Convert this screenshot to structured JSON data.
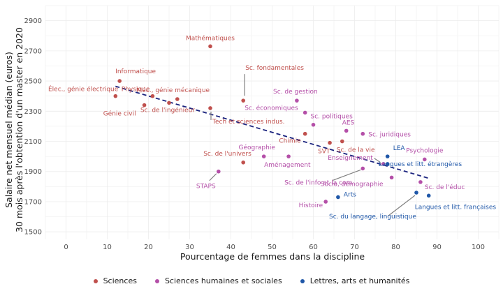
{
  "chart_data": {
    "type": "scatter",
    "xlabel": "Pourcentage de femmes dans la discipline",
    "ylabel_lines": [
      "Salaire net mensuel médian (euros)",
      "30 mois après l'obtention d'un master en 2020"
    ],
    "xlim": [
      -5,
      105
    ],
    "ylim": [
      1450,
      3000
    ],
    "xticks": [
      0,
      10,
      20,
      30,
      40,
      50,
      60,
      70,
      80,
      90,
      100
    ],
    "yticks": [
      1500,
      1700,
      1900,
      2100,
      2300,
      2500,
      2700,
      2900
    ],
    "grid": true,
    "legend_position": "bottom",
    "trend_line": {
      "x": [
        12,
        88
      ],
      "y": [
        2465,
        1855
      ],
      "color": "#1a237e",
      "style": "dashed"
    },
    "series": [
      {
        "name": "Sciences",
        "color": "#c0504d",
        "points": [
          {
            "label": "Mathématiques",
            "x": 35,
            "y": 2730
          },
          {
            "label": "Informatique",
            "x": 13,
            "y": 2500
          },
          {
            "label": "Élec., génie électrique",
            "x": 12,
            "y": 2400
          },
          {
            "label": "Physique",
            "x": 21,
            "y": 2400
          },
          {
            "label": "Génie civil",
            "x": 19,
            "y": 2340
          },
          {
            "label": "Méc., génie mécanique",
            "x": 27,
            "y": 2380
          },
          {
            "label": "Sc. de l'ingénieur",
            "x": 25,
            "y": 2355
          },
          {
            "label": "Sc. fondamentales",
            "x": 43,
            "y": 2370
          },
          {
            "label": "Tech et sciences indus.",
            "x": 35,
            "y": 2320
          },
          {
            "label": "Chimie",
            "x": 58,
            "y": 2150
          },
          {
            "label": "SVT",
            "x": 64,
            "y": 2090
          },
          {
            "label": "Sc. de la vie",
            "x": 67,
            "y": 2100
          },
          {
            "label": "Sc. de l'univers",
            "x": 43,
            "y": 1960
          }
        ]
      },
      {
        "name": "Sciences humaines et sociales",
        "color": "#b44fa8",
        "points": [
          {
            "label": "Sc. de gestion",
            "x": 56,
            "y": 2370
          },
          {
            "label": "Sc. économiques",
            "x": 58,
            "y": 2290
          },
          {
            "label": "Sc. politiques",
            "x": 60,
            "y": 2210
          },
          {
            "label": "AES",
            "x": 68,
            "y": 2170
          },
          {
            "label": "Sc. juridiques",
            "x": 72,
            "y": 2150
          },
          {
            "label": "Géographie",
            "x": 48,
            "y": 2000
          },
          {
            "label": "Aménagement",
            "x": 54,
            "y": 2000
          },
          {
            "label": "STAPS",
            "x": 37,
            "y": 1900
          },
          {
            "label": "Enseignement",
            "x": 77,
            "y": 1950
          },
          {
            "label": "Sc. de l'info et la com",
            "x": 72,
            "y": 1920
          },
          {
            "label": "Psychologie",
            "x": 87,
            "y": 1980
          },
          {
            "label": "Socio, démographie",
            "x": 79,
            "y": 1860
          },
          {
            "label": "Sc. de l'éduc",
            "x": 86,
            "y": 1830
          },
          {
            "label": "Histoire",
            "x": 63,
            "y": 1700
          }
        ]
      },
      {
        "name": "Lettres, arts et humanités",
        "color": "#1f57a8",
        "points": [
          {
            "label": "LEA",
            "x": 78,
            "y": 2000
          },
          {
            "label": "Langues et litt. étrangères",
            "x": 78,
            "y": 1950
          },
          {
            "label": "Arts",
            "x": 66,
            "y": 1730
          },
          {
            "label": "Langues et litt. françaises",
            "x": 88,
            "y": 1740
          },
          {
            "label": "Sc. du langage, linguistique",
            "x": 85,
            "y": 1760
          }
        ]
      }
    ]
  }
}
